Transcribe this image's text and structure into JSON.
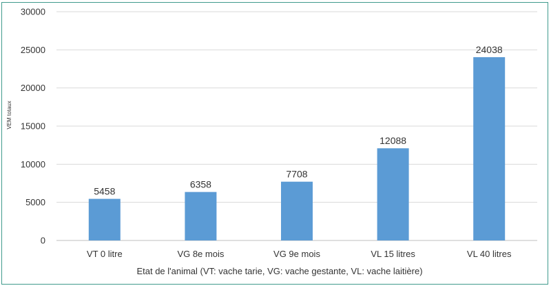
{
  "chart_data": {
    "type": "bar",
    "title": "",
    "xlabel": "Etat de l'animal (VT: vache tarie, VG: vache gestante, VL: vache laitière)",
    "ylabel": "VEM totaux",
    "categories": [
      "VT 0 litre",
      "VG 8e mois",
      "VG 9e mois",
      "VL 15 litres",
      "VL 40 litres"
    ],
    "values": [
      5458,
      6358,
      7708,
      12088,
      24038
    ],
    "ylim": [
      0,
      30000
    ],
    "yticks": [
      0,
      5000,
      10000,
      15000,
      20000,
      25000,
      30000
    ],
    "grid": true,
    "legend": "none",
    "colors": {
      "bar": "#5b9bd5",
      "grid": "#d9d9d9",
      "frame": "#3f9a8c"
    }
  }
}
